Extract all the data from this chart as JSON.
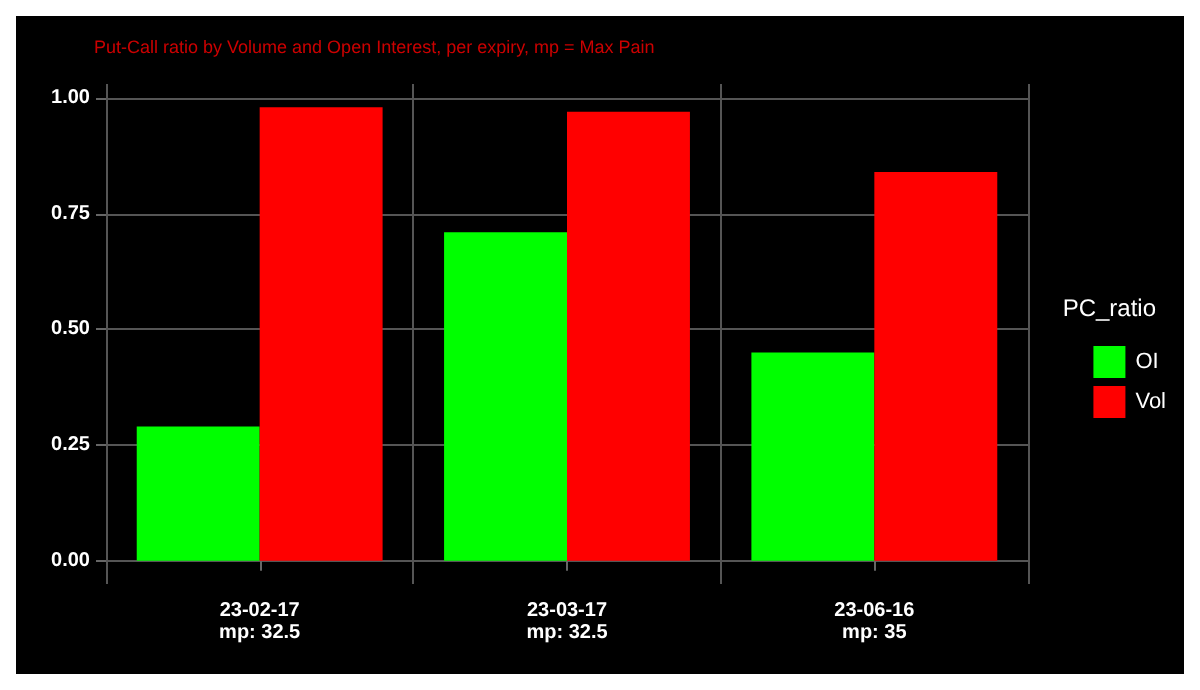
{
  "chart_data": {
    "type": "bar",
    "subtitle": "Put-Call ratio by Volume and Open Interest, per expiry, mp = Max Pain",
    "legend_title": "PC_ratio",
    "categories": [
      "23-02-17\nmp: 32.5",
      "23-03-17\nmp: 32.5",
      "23-06-16\nmp: 35"
    ],
    "series": [
      {
        "name": "OI",
        "color": "#00ff00",
        "values": [
          0.29,
          0.71,
          0.45
        ]
      },
      {
        "name": "Vol",
        "color": "#ff0000",
        "values": [
          0.98,
          0.97,
          0.84
        ]
      }
    ],
    "ylim": [
      -0.05,
      1.03
    ],
    "yticks": [
      {
        "value": 0,
        "label": "0.00"
      },
      {
        "value": 0.25,
        "label": "0.25"
      },
      {
        "value": 0.5,
        "label": "0.50"
      },
      {
        "value": 0.75,
        "label": "0.75"
      },
      {
        "value": 1,
        "label": "1.00"
      }
    ],
    "grid": true,
    "legend": "right"
  }
}
